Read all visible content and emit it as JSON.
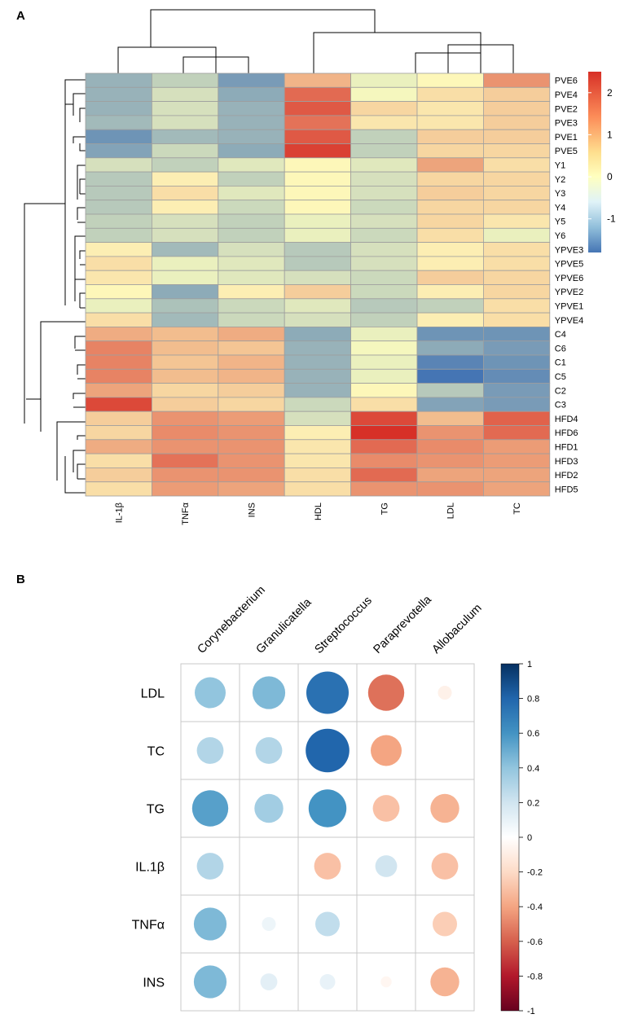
{
  "panel_a_label": "A",
  "panel_b_label": "B",
  "chart_data": [
    {
      "type": "heatmap",
      "panel": "A",
      "columns": [
        "IL-1β",
        "TNFα",
        "INS",
        "HDL",
        "TG",
        "LDL",
        "TC"
      ],
      "rows": [
        "PVE6",
        "PVE4",
        "PVE2",
        "PVE3",
        "PVE1",
        "PVE5",
        "Y1",
        "Y2",
        "Y3",
        "Y4",
        "Y5",
        "Y6",
        "YPVE3",
        "YPVE5",
        "YPVE6",
        "YPVE2",
        "YPVE1",
        "YPVE4",
        "C4",
        "C6",
        "C1",
        "C5",
        "C2",
        "C3",
        "HFD4",
        "HFD6",
        "HFD1",
        "HFD3",
        "HFD2",
        "HFD5"
      ],
      "values": [
        [
          -1.0,
          -0.6,
          -1.3,
          0.9,
          -0.2,
          0.1,
          1.3
        ],
        [
          -1.0,
          -0.4,
          -1.1,
          1.8,
          -0.1,
          0.4,
          0.6
        ],
        [
          -1.0,
          -0.4,
          -1.0,
          2.0,
          0.5,
          0.3,
          0.6
        ],
        [
          -0.9,
          -0.4,
          -1.0,
          1.7,
          0.3,
          0.3,
          0.6
        ],
        [
          -1.4,
          -0.9,
          -1.0,
          2.0,
          -0.6,
          0.6,
          0.6
        ],
        [
          -1.2,
          -0.5,
          -1.1,
          2.3,
          -0.6,
          0.5,
          0.5
        ],
        [
          -0.4,
          -0.6,
          -0.3,
          0.1,
          -0.3,
          1.1,
          0.4
        ],
        [
          -0.7,
          0.2,
          -0.6,
          0.1,
          -0.4,
          0.5,
          0.5
        ],
        [
          -0.7,
          0.4,
          -0.3,
          0.1,
          -0.4,
          0.6,
          0.5
        ],
        [
          -0.7,
          0.2,
          -0.5,
          0.1,
          -0.5,
          0.5,
          0.5
        ],
        [
          -0.6,
          -0.4,
          -0.6,
          -0.2,
          -0.4,
          0.5,
          0.3
        ],
        [
          -0.6,
          -0.4,
          -0.6,
          -0.2,
          -0.5,
          0.4,
          -0.2
        ],
        [
          0.2,
          -0.9,
          -0.4,
          -0.7,
          -0.4,
          0.2,
          0.4
        ],
        [
          0.4,
          -0.2,
          -0.3,
          -0.7,
          -0.4,
          0.2,
          0.4
        ],
        [
          0.3,
          -0.2,
          -0.3,
          -0.4,
          -0.5,
          0.6,
          0.5
        ],
        [
          0.1,
          -1.1,
          0.2,
          0.6,
          -0.5,
          0.2,
          0.5
        ],
        [
          -0.2,
          -0.8,
          -0.5,
          -0.3,
          -0.7,
          -0.6,
          0.4
        ],
        [
          0.4,
          -0.9,
          -0.5,
          -0.4,
          -0.6,
          0.2,
          0.4
        ],
        [
          1.0,
          0.8,
          1.0,
          -1.1,
          -0.2,
          -1.4,
          -1.4
        ],
        [
          1.5,
          0.8,
          0.7,
          -1.0,
          -0.1,
          -1.1,
          -1.3
        ],
        [
          1.5,
          0.7,
          0.9,
          -1.0,
          -0.2,
          -1.6,
          -1.4
        ],
        [
          1.5,
          0.8,
          0.9,
          -1.0,
          -0.2,
          -1.8,
          -1.5
        ],
        [
          1.1,
          0.5,
          0.6,
          -1.0,
          0.1,
          -0.7,
          -1.3
        ],
        [
          2.2,
          0.6,
          0.5,
          -0.5,
          0.4,
          -1.2,
          -1.3
        ],
        [
          0.6,
          1.3,
          1.2,
          -0.4,
          2.2,
          0.8,
          1.9
        ],
        [
          0.5,
          1.4,
          1.3,
          0.2,
          2.5,
          1.3,
          1.8
        ],
        [
          1.0,
          1.3,
          1.3,
          0.3,
          1.8,
          1.4,
          1.2
        ],
        [
          0.4,
          1.7,
          1.3,
          0.3,
          1.4,
          1.3,
          1.2
        ],
        [
          0.6,
          1.3,
          1.3,
          0.4,
          1.8,
          1.1,
          1.1
        ],
        [
          0.4,
          1.2,
          1.1,
          0.4,
          1.3,
          1.3,
          1.1
        ]
      ],
      "color_scale": {
        "min": -1.8,
        "max": 2.5,
        "low": "#4575b4",
        "mid": "#ffffbf",
        "high": "#d73027"
      },
      "legend_ticks": [
        "2",
        "1",
        "0",
        "-1"
      ],
      "legend_tick_values": [
        2,
        1,
        0,
        -1
      ],
      "legend_placement": "top-right"
    },
    {
      "type": "heatmap",
      "subtype": "correlation-circles",
      "panel": "B",
      "columns": [
        "Corynebacterium",
        "Granulicatella",
        "Streptococcus",
        "Paraprevotella",
        "Allobaculum"
      ],
      "rows": [
        "LDL",
        "TC",
        "TG",
        "IL.1β",
        "TNFα",
        "INS"
      ],
      "values": [
        [
          0.4,
          0.45,
          0.75,
          -0.55,
          -0.08
        ],
        [
          0.3,
          0.3,
          0.8,
          -0.4,
          0.0
        ],
        [
          0.55,
          0.35,
          0.6,
          -0.3,
          -0.35
        ],
        [
          0.3,
          0.0,
          -0.3,
          0.2,
          -0.3
        ],
        [
          0.45,
          0.08,
          0.25,
          0.0,
          -0.25
        ],
        [
          0.45,
          0.12,
          0.1,
          -0.05,
          -0.35
        ]
      ],
      "color_scale": {
        "min": -1,
        "max": 1,
        "low": "#67001f",
        "mid": "#ffffff",
        "high": "#053061"
      },
      "legend_ticks": [
        "1",
        "0.8",
        "0.6",
        "0.4",
        "0.2",
        "0",
        "-0.2",
        "-0.4",
        "-0.6",
        "-0.8",
        "-1"
      ],
      "legend_tick_values": [
        1,
        0.8,
        0.6,
        0.4,
        0.2,
        0,
        -0.2,
        -0.4,
        -0.6,
        -0.8,
        -1
      ],
      "legend_placement": "right"
    }
  ]
}
